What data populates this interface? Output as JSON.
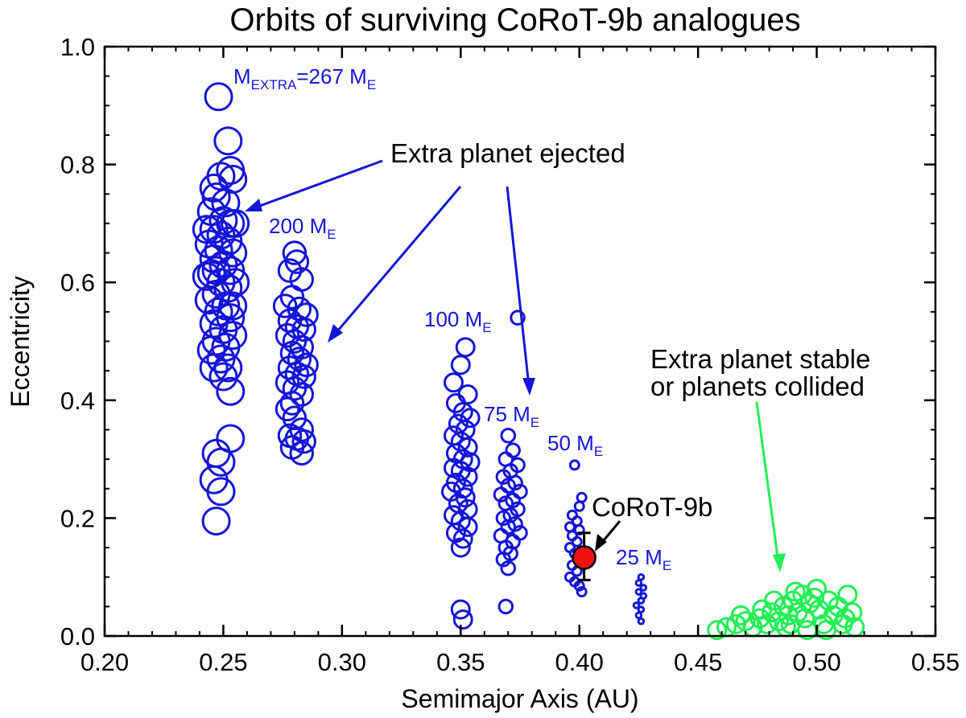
{
  "chart_data": {
    "type": "scatter",
    "title": "Orbits of surviving CoRoT-9b analogues",
    "xlabel": "Semimajor Axis (AU)",
    "ylabel": "Eccentricity",
    "xlim": [
      0.2,
      0.55
    ],
    "ylim": [
      0.0,
      1.0
    ],
    "xticks": [
      0.2,
      0.25,
      0.3,
      0.35,
      0.4,
      0.45,
      0.5,
      0.55
    ],
    "xtick_labels": [
      "0.20",
      "0.25",
      "0.30",
      "0.35",
      "0.40",
      "0.45",
      "0.50",
      "0.55"
    ],
    "yticks": [
      0.0,
      0.2,
      0.4,
      0.6,
      0.8,
      1.0
    ],
    "ytick_labels": [
      "0.0",
      "0.2",
      "0.4",
      "0.6",
      "0.8",
      "1.0"
    ],
    "series": [
      {
        "name": "267 M_E",
        "color": "#1515d8",
        "marker": "open-circle",
        "marker_scale": 3,
        "points": [
          {
            "a": 0.248,
            "e": 0.915
          },
          {
            "a": 0.252,
            "e": 0.84
          },
          {
            "a": 0.253,
            "e": 0.79
          },
          {
            "a": 0.249,
            "e": 0.78
          },
          {
            "a": 0.246,
            "e": 0.76
          },
          {
            "a": 0.254,
            "e": 0.775
          },
          {
            "a": 0.247,
            "e": 0.745
          },
          {
            "a": 0.251,
            "e": 0.735
          },
          {
            "a": 0.245,
            "e": 0.72
          },
          {
            "a": 0.25,
            "e": 0.705
          },
          {
            "a": 0.253,
            "e": 0.7
          },
          {
            "a": 0.246,
            "e": 0.69
          },
          {
            "a": 0.249,
            "e": 0.68
          },
          {
            "a": 0.252,
            "e": 0.67
          },
          {
            "a": 0.244,
            "e": 0.665
          },
          {
            "a": 0.248,
            "e": 0.655
          },
          {
            "a": 0.254,
            "e": 0.65
          },
          {
            "a": 0.246,
            "e": 0.64
          },
          {
            "a": 0.25,
            "e": 0.63
          },
          {
            "a": 0.253,
            "e": 0.62
          },
          {
            "a": 0.245,
            "e": 0.615
          },
          {
            "a": 0.249,
            "e": 0.6
          },
          {
            "a": 0.252,
            "e": 0.59
          },
          {
            "a": 0.247,
            "e": 0.58
          },
          {
            "a": 0.244,
            "e": 0.57
          },
          {
            "a": 0.251,
            "e": 0.56
          },
          {
            "a": 0.248,
            "e": 0.55
          },
          {
            "a": 0.253,
            "e": 0.54
          },
          {
            "a": 0.246,
            "e": 0.53
          },
          {
            "a": 0.25,
            "e": 0.52
          },
          {
            "a": 0.254,
            "e": 0.51
          },
          {
            "a": 0.247,
            "e": 0.5
          },
          {
            "a": 0.251,
            "e": 0.49
          },
          {
            "a": 0.245,
            "e": 0.485
          },
          {
            "a": 0.249,
            "e": 0.47
          },
          {
            "a": 0.252,
            "e": 0.455
          },
          {
            "a": 0.246,
            "e": 0.455
          },
          {
            "a": 0.25,
            "e": 0.44
          },
          {
            "a": 0.253,
            "e": 0.415
          },
          {
            "a": 0.253,
            "e": 0.335
          },
          {
            "a": 0.247,
            "e": 0.31
          },
          {
            "a": 0.249,
            "e": 0.295
          },
          {
            "a": 0.246,
            "e": 0.265
          },
          {
            "a": 0.249,
            "e": 0.245
          },
          {
            "a": 0.247,
            "e": 0.195
          },
          {
            "a": 0.255,
            "e": 0.6
          },
          {
            "a": 0.243,
            "e": 0.61
          },
          {
            "a": 0.254,
            "e": 0.56
          },
          {
            "a": 0.255,
            "e": 0.7
          },
          {
            "a": 0.243,
            "e": 0.69
          },
          {
            "a": 0.247,
            "e": 0.62
          }
        ]
      },
      {
        "name": "200 M_E",
        "color": "#1515d8",
        "marker": "open-circle",
        "marker_scale": 2.5,
        "points": [
          {
            "a": 0.28,
            "e": 0.65
          },
          {
            "a": 0.281,
            "e": 0.635
          },
          {
            "a": 0.278,
            "e": 0.62
          },
          {
            "a": 0.283,
            "e": 0.605
          },
          {
            "a": 0.279,
            "e": 0.575
          },
          {
            "a": 0.276,
            "e": 0.56
          },
          {
            "a": 0.282,
            "e": 0.555
          },
          {
            "a": 0.285,
            "e": 0.545
          },
          {
            "a": 0.278,
            "e": 0.535
          },
          {
            "a": 0.281,
            "e": 0.525
          },
          {
            "a": 0.284,
            "e": 0.52
          },
          {
            "a": 0.277,
            "e": 0.51
          },
          {
            "a": 0.28,
            "e": 0.5
          },
          {
            "a": 0.283,
            "e": 0.49
          },
          {
            "a": 0.279,
            "e": 0.48
          },
          {
            "a": 0.282,
            "e": 0.47
          },
          {
            "a": 0.285,
            "e": 0.46
          },
          {
            "a": 0.278,
            "e": 0.455
          },
          {
            "a": 0.281,
            "e": 0.445
          },
          {
            "a": 0.284,
            "e": 0.44
          },
          {
            "a": 0.277,
            "e": 0.43
          },
          {
            "a": 0.28,
            "e": 0.42
          },
          {
            "a": 0.283,
            "e": 0.41
          },
          {
            "a": 0.279,
            "e": 0.395
          },
          {
            "a": 0.277,
            "e": 0.385
          },
          {
            "a": 0.28,
            "e": 0.37
          },
          {
            "a": 0.283,
            "e": 0.35
          },
          {
            "a": 0.278,
            "e": 0.34
          },
          {
            "a": 0.281,
            "e": 0.335
          },
          {
            "a": 0.284,
            "e": 0.33
          },
          {
            "a": 0.279,
            "e": 0.32
          },
          {
            "a": 0.283,
            "e": 0.31
          }
        ]
      },
      {
        "name": "100 M_E",
        "color": "#1515d8",
        "marker": "open-circle",
        "marker_scale": 2,
        "points": [
          {
            "a": 0.352,
            "e": 0.49
          },
          {
            "a": 0.35,
            "e": 0.46
          },
          {
            "a": 0.347,
            "e": 0.43
          },
          {
            "a": 0.353,
            "e": 0.41
          },
          {
            "a": 0.348,
            "e": 0.395
          },
          {
            "a": 0.351,
            "e": 0.38
          },
          {
            "a": 0.354,
            "e": 0.37
          },
          {
            "a": 0.349,
            "e": 0.36
          },
          {
            "a": 0.352,
            "e": 0.35
          },
          {
            "a": 0.347,
            "e": 0.34
          },
          {
            "a": 0.35,
            "e": 0.33
          },
          {
            "a": 0.353,
            "e": 0.32
          },
          {
            "a": 0.348,
            "e": 0.31
          },
          {
            "a": 0.351,
            "e": 0.3
          },
          {
            "a": 0.354,
            "e": 0.295
          },
          {
            "a": 0.347,
            "e": 0.285
          },
          {
            "a": 0.35,
            "e": 0.28
          },
          {
            "a": 0.353,
            "e": 0.27
          },
          {
            "a": 0.348,
            "e": 0.26
          },
          {
            "a": 0.351,
            "e": 0.25
          },
          {
            "a": 0.346,
            "e": 0.245
          },
          {
            "a": 0.352,
            "e": 0.235
          },
          {
            "a": 0.349,
            "e": 0.225
          },
          {
            "a": 0.353,
            "e": 0.215
          },
          {
            "a": 0.347,
            "e": 0.205
          },
          {
            "a": 0.35,
            "e": 0.195
          },
          {
            "a": 0.353,
            "e": 0.185
          },
          {
            "a": 0.348,
            "e": 0.175
          },
          {
            "a": 0.351,
            "e": 0.165
          },
          {
            "a": 0.35,
            "e": 0.15
          },
          {
            "a": 0.35,
            "e": 0.045
          },
          {
            "a": 0.351,
            "e": 0.028
          }
        ]
      },
      {
        "name": "75 M_E",
        "color": "#1515d8",
        "marker": "open-circle",
        "marker_scale": 1.5,
        "points": [
          {
            "a": 0.374,
            "e": 0.54
          },
          {
            "a": 0.37,
            "e": 0.34
          },
          {
            "a": 0.372,
            "e": 0.315
          },
          {
            "a": 0.369,
            "e": 0.3
          },
          {
            "a": 0.374,
            "e": 0.29
          },
          {
            "a": 0.371,
            "e": 0.28
          },
          {
            "a": 0.368,
            "e": 0.27
          },
          {
            "a": 0.373,
            "e": 0.26
          },
          {
            "a": 0.37,
            "e": 0.255
          },
          {
            "a": 0.375,
            "e": 0.245
          },
          {
            "a": 0.367,
            "e": 0.24
          },
          {
            "a": 0.372,
            "e": 0.23
          },
          {
            "a": 0.369,
            "e": 0.225
          },
          {
            "a": 0.374,
            "e": 0.215
          },
          {
            "a": 0.371,
            "e": 0.205
          },
          {
            "a": 0.368,
            "e": 0.2
          },
          {
            "a": 0.373,
            "e": 0.19
          },
          {
            "a": 0.37,
            "e": 0.185
          },
          {
            "a": 0.375,
            "e": 0.175
          },
          {
            "a": 0.367,
            "e": 0.17
          },
          {
            "a": 0.372,
            "e": 0.16
          },
          {
            "a": 0.369,
            "e": 0.15
          },
          {
            "a": 0.371,
            "e": 0.14
          },
          {
            "a": 0.368,
            "e": 0.13
          },
          {
            "a": 0.37,
            "e": 0.115
          },
          {
            "a": 0.369,
            "e": 0.05
          }
        ]
      },
      {
        "name": "50 M_E",
        "color": "#1515d8",
        "marker": "open-circle",
        "marker_scale": 1,
        "points": [
          {
            "a": 0.398,
            "e": 0.29
          },
          {
            "a": 0.401,
            "e": 0.235
          },
          {
            "a": 0.4,
            "e": 0.22
          },
          {
            "a": 0.397,
            "e": 0.205
          },
          {
            "a": 0.399,
            "e": 0.195
          },
          {
            "a": 0.396,
            "e": 0.185
          },
          {
            "a": 0.4,
            "e": 0.18
          },
          {
            "a": 0.397,
            "e": 0.17
          },
          {
            "a": 0.399,
            "e": 0.16
          },
          {
            "a": 0.396,
            "e": 0.15
          },
          {
            "a": 0.398,
            "e": 0.14
          },
          {
            "a": 0.4,
            "e": 0.13
          },
          {
            "a": 0.397,
            "e": 0.12
          },
          {
            "a": 0.399,
            "e": 0.11
          },
          {
            "a": 0.396,
            "e": 0.1
          },
          {
            "a": 0.398,
            "e": 0.092
          },
          {
            "a": 0.4,
            "e": 0.085
          },
          {
            "a": 0.401,
            "e": 0.075
          }
        ]
      },
      {
        "name": "25 M_E",
        "color": "#1515d8",
        "marker": "open-circle",
        "marker_scale": 0.6,
        "points": [
          {
            "a": 0.426,
            "e": 0.1
          },
          {
            "a": 0.425,
            "e": 0.09
          },
          {
            "a": 0.427,
            "e": 0.082
          },
          {
            "a": 0.425,
            "e": 0.075
          },
          {
            "a": 0.427,
            "e": 0.068
          },
          {
            "a": 0.426,
            "e": 0.06
          },
          {
            "a": 0.424,
            "e": 0.052
          },
          {
            "a": 0.426,
            "e": 0.045
          },
          {
            "a": 0.425,
            "e": 0.035
          },
          {
            "a": 0.426,
            "e": 0.025
          }
        ]
      },
      {
        "name": "Extra planet stable or planets collided",
        "color": "#22ee55",
        "marker": "open-circle",
        "marker_scale": 2,
        "points": [
          {
            "a": 0.458,
            "e": 0.01
          },
          {
            "a": 0.462,
            "e": 0.015
          },
          {
            "a": 0.466,
            "e": 0.02
          },
          {
            "a": 0.47,
            "e": 0.025
          },
          {
            "a": 0.473,
            "e": 0.015
          },
          {
            "a": 0.476,
            "e": 0.03
          },
          {
            "a": 0.479,
            "e": 0.02
          },
          {
            "a": 0.481,
            "e": 0.04
          },
          {
            "a": 0.484,
            "e": 0.025
          },
          {
            "a": 0.486,
            "e": 0.05
          },
          {
            "a": 0.488,
            "e": 0.035
          },
          {
            "a": 0.49,
            "e": 0.06
          },
          {
            "a": 0.492,
            "e": 0.04
          },
          {
            "a": 0.494,
            "e": 0.07
          },
          {
            "a": 0.495,
            "e": 0.03
          },
          {
            "a": 0.497,
            "e": 0.055
          },
          {
            "a": 0.499,
            "e": 0.065
          },
          {
            "a": 0.501,
            "e": 0.045
          },
          {
            "a": 0.503,
            "e": 0.02
          },
          {
            "a": 0.505,
            "e": 0.06
          },
          {
            "a": 0.507,
            "e": 0.035
          },
          {
            "a": 0.509,
            "e": 0.05
          },
          {
            "a": 0.511,
            "e": 0.02
          },
          {
            "a": 0.513,
            "e": 0.07
          },
          {
            "a": 0.515,
            "e": 0.04
          },
          {
            "a": 0.516,
            "e": 0.015
          },
          {
            "a": 0.487,
            "e": 0.015
          },
          {
            "a": 0.496,
            "e": 0.01
          },
          {
            "a": 0.482,
            "e": 0.06
          },
          {
            "a": 0.5,
            "e": 0.08
          },
          {
            "a": 0.491,
            "e": 0.075
          },
          {
            "a": 0.477,
            "e": 0.045
          },
          {
            "a": 0.468,
            "e": 0.035
          },
          {
            "a": 0.504,
            "e": 0.01
          },
          {
            "a": 0.512,
            "e": 0.03
          },
          {
            "a": 0.489,
            "e": 0.02
          }
        ]
      }
    ],
    "corot9b": {
      "label": "CoRoT-9b",
      "a": 0.402,
      "e": 0.133,
      "e_err_low": 0.038,
      "e_err_high": 0.042,
      "color": "#ee1111"
    },
    "annotations": {
      "mass_267": {
        "prefix": "M",
        "subscript": "EXTRA",
        "suffix": "=267 M",
        "unit_sub": "E"
      },
      "mass_200": {
        "prefix": "200 M",
        "subscript": "E"
      },
      "mass_100": {
        "prefix": "100 M",
        "subscript": "E"
      },
      "mass_75": {
        "prefix": "75 M",
        "subscript": "E"
      },
      "mass_50": {
        "prefix": "50 M",
        "subscript": "E"
      },
      "mass_25": {
        "prefix": "25 M",
        "subscript": "E"
      },
      "ejected": "Extra planet ejected",
      "stable_line1": "Extra planet stable",
      "stable_line2": "or planets collided"
    }
  }
}
